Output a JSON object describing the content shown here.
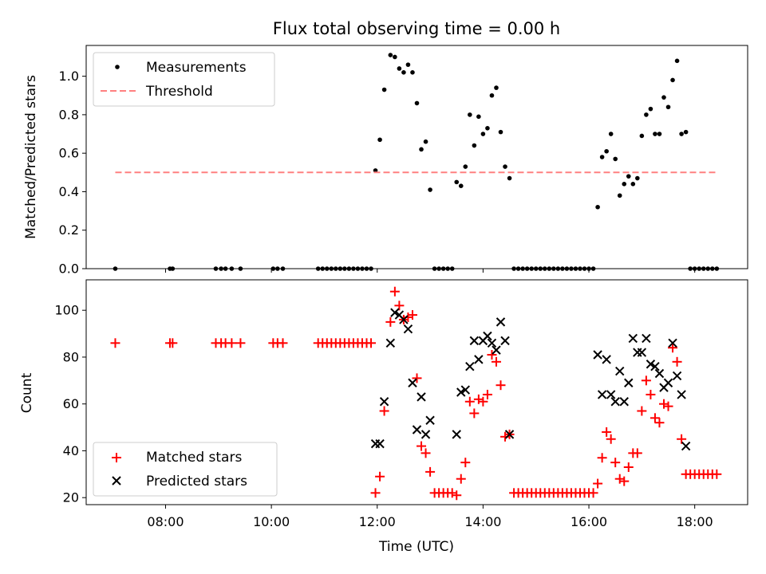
{
  "chart_data": [
    {
      "type": "scatter",
      "title": "Flux total observing time = 0.00 h",
      "xlabel": "",
      "ylabel": "Matched/Predicted stars",
      "xlim": [
        "06:30",
        "19:00"
      ],
      "ylim": [
        0,
        1.16
      ],
      "yticks": [
        0.0,
        0.2,
        0.4,
        0.6,
        0.8,
        1.0
      ],
      "ytick_labels": [
        "0.0",
        "0.2",
        "0.4",
        "0.6",
        "0.8",
        "1.0"
      ],
      "legend_position": "top-left",
      "series": [
        {
          "name": "Measurements",
          "marker": "dot",
          "color": "#000000",
          "points": [
            [
              "07:03",
              0
            ],
            [
              "08:05",
              0
            ],
            [
              "08:08",
              0
            ],
            [
              "08:57",
              0
            ],
            [
              "09:03",
              0
            ],
            [
              "09:08",
              0
            ],
            [
              "09:15",
              0
            ],
            [
              "09:25",
              0
            ],
            [
              "10:02",
              0
            ],
            [
              "10:07",
              0
            ],
            [
              "10:13",
              0
            ],
            [
              "10:53",
              0
            ],
            [
              "10:58",
              0
            ],
            [
              "11:03",
              0
            ],
            [
              "11:08",
              0
            ],
            [
              "11:13",
              0
            ],
            [
              "11:18",
              0
            ],
            [
              "11:23",
              0
            ],
            [
              "11:28",
              0
            ],
            [
              "11:33",
              0
            ],
            [
              "11:38",
              0
            ],
            [
              "11:43",
              0
            ],
            [
              "11:48",
              0
            ],
            [
              "11:53",
              0
            ],
            [
              "11:58",
              0.51
            ],
            [
              "12:03",
              0.67
            ],
            [
              "12:08",
              0.93
            ],
            [
              "12:15",
              1.11
            ],
            [
              "12:20",
              1.1
            ],
            [
              "12:25",
              1.04
            ],
            [
              "12:30",
              1.02
            ],
            [
              "12:35",
              1.06
            ],
            [
              "12:40",
              1.02
            ],
            [
              "12:45",
              0.86
            ],
            [
              "12:50",
              0.62
            ],
            [
              "12:55",
              0.66
            ],
            [
              "13:00",
              0.41
            ],
            [
              "13:05",
              0
            ],
            [
              "13:10",
              0
            ],
            [
              "13:15",
              0
            ],
            [
              "13:20",
              0
            ],
            [
              "13:25",
              0
            ],
            [
              "13:30",
              0.45
            ],
            [
              "13:35",
              0.43
            ],
            [
              "13:40",
              0.53
            ],
            [
              "13:45",
              0.8
            ],
            [
              "13:50",
              0.64
            ],
            [
              "13:55",
              0.79
            ],
            [
              "14:00",
              0.7
            ],
            [
              "14:05",
              0.73
            ],
            [
              "14:10",
              0.9
            ],
            [
              "14:15",
              0.94
            ],
            [
              "14:20",
              0.71
            ],
            [
              "14:25",
              0.53
            ],
            [
              "14:30",
              0.47
            ],
            [
              "14:35",
              0
            ],
            [
              "14:40",
              0
            ],
            [
              "14:45",
              0
            ],
            [
              "14:50",
              0
            ],
            [
              "14:55",
              0
            ],
            [
              "15:00",
              0
            ],
            [
              "15:05",
              0
            ],
            [
              "15:10",
              0
            ],
            [
              "15:15",
              0
            ],
            [
              "15:20",
              0
            ],
            [
              "15:25",
              0
            ],
            [
              "15:30",
              0
            ],
            [
              "15:35",
              0
            ],
            [
              "15:40",
              0
            ],
            [
              "15:45",
              0
            ],
            [
              "15:50",
              0
            ],
            [
              "15:55",
              0
            ],
            [
              "16:00",
              0
            ],
            [
              "16:05",
              0
            ],
            [
              "16:10",
              0.32
            ],
            [
              "16:15",
              0.58
            ],
            [
              "16:20",
              0.61
            ],
            [
              "16:25",
              0.7
            ],
            [
              "16:30",
              0.57
            ],
            [
              "16:35",
              0.38
            ],
            [
              "16:40",
              0.44
            ],
            [
              "16:45",
              0.48
            ],
            [
              "16:50",
              0.44
            ],
            [
              "16:55",
              0.47
            ],
            [
              "17:00",
              0.69
            ],
            [
              "17:05",
              0.8
            ],
            [
              "17:10",
              0.83
            ],
            [
              "17:15",
              0.7
            ],
            [
              "17:20",
              0.7
            ],
            [
              "17:25",
              0.89
            ],
            [
              "17:30",
              0.84
            ],
            [
              "17:35",
              0.98
            ],
            [
              "17:40",
              1.08
            ],
            [
              "17:45",
              0.7
            ],
            [
              "17:50",
              0.71
            ],
            [
              "17:55",
              0
            ],
            [
              "18:00",
              0
            ],
            [
              "18:05",
              0
            ],
            [
              "18:10",
              0
            ],
            [
              "18:15",
              0
            ],
            [
              "18:20",
              0
            ],
            [
              "18:25",
              0
            ]
          ]
        },
        {
          "name": "Threshold",
          "marker": "dashed-line",
          "color": "#ff8080",
          "points": [
            [
              "07:03",
              0.5
            ],
            [
              "18:25",
              0.5
            ]
          ]
        }
      ]
    },
    {
      "type": "scatter",
      "title": "",
      "xlabel": "Time (UTC)",
      "ylabel": "Count",
      "xlim": [
        "06:30",
        "19:00"
      ],
      "ylim": [
        17,
        113
      ],
      "xticks": [
        "08:00",
        "10:00",
        "12:00",
        "14:00",
        "16:00",
        "18:00"
      ],
      "yticks": [
        20,
        40,
        60,
        80,
        100
      ],
      "ytick_labels": [
        "20",
        "40",
        "60",
        "80",
        "100"
      ],
      "legend_position": "bottom-left",
      "series": [
        {
          "name": "Matched stars",
          "marker": "plus",
          "color": "#ff0000",
          "points": [
            [
              "07:03",
              86
            ],
            [
              "08:05",
              86
            ],
            [
              "08:08",
              86
            ],
            [
              "08:57",
              86
            ],
            [
              "09:03",
              86
            ],
            [
              "09:08",
              86
            ],
            [
              "09:15",
              86
            ],
            [
              "09:25",
              86
            ],
            [
              "10:02",
              86
            ],
            [
              "10:07",
              86
            ],
            [
              "10:13",
              86
            ],
            [
              "10:53",
              86
            ],
            [
              "10:58",
              86
            ],
            [
              "11:03",
              86
            ],
            [
              "11:08",
              86
            ],
            [
              "11:13",
              86
            ],
            [
              "11:18",
              86
            ],
            [
              "11:23",
              86
            ],
            [
              "11:28",
              86
            ],
            [
              "11:33",
              86
            ],
            [
              "11:38",
              86
            ],
            [
              "11:43",
              86
            ],
            [
              "11:48",
              86
            ],
            [
              "11:53",
              86
            ],
            [
              "11:58",
              22
            ],
            [
              "12:03",
              29
            ],
            [
              "12:08",
              57
            ],
            [
              "12:15",
              95
            ],
            [
              "12:20",
              108
            ],
            [
              "12:25",
              102
            ],
            [
              "12:30",
              96
            ],
            [
              "12:35",
              97
            ],
            [
              "12:40",
              98
            ],
            [
              "12:45",
              71
            ],
            [
              "12:50",
              42
            ],
            [
              "12:55",
              39
            ],
            [
              "13:00",
              31
            ],
            [
              "13:05",
              22
            ],
            [
              "13:10",
              22
            ],
            [
              "13:15",
              22
            ],
            [
              "13:20",
              22
            ],
            [
              "13:25",
              22
            ],
            [
              "13:30",
              21
            ],
            [
              "13:35",
              28
            ],
            [
              "13:40",
              35
            ],
            [
              "13:45",
              61
            ],
            [
              "13:50",
              56
            ],
            [
              "13:55",
              62
            ],
            [
              "14:00",
              61
            ],
            [
              "14:05",
              64
            ],
            [
              "14:10",
              81
            ],
            [
              "14:15",
              78
            ],
            [
              "14:20",
              68
            ],
            [
              "14:25",
              46
            ],
            [
              "14:30",
              47
            ],
            [
              "14:35",
              22
            ],
            [
              "14:40",
              22
            ],
            [
              "14:45",
              22
            ],
            [
              "14:50",
              22
            ],
            [
              "14:55",
              22
            ],
            [
              "15:00",
              22
            ],
            [
              "15:05",
              22
            ],
            [
              "15:10",
              22
            ],
            [
              "15:15",
              22
            ],
            [
              "15:20",
              22
            ],
            [
              "15:25",
              22
            ],
            [
              "15:30",
              22
            ],
            [
              "15:35",
              22
            ],
            [
              "15:40",
              22
            ],
            [
              "15:45",
              22
            ],
            [
              "15:50",
              22
            ],
            [
              "15:55",
              22
            ],
            [
              "16:00",
              22
            ],
            [
              "16:05",
              22
            ],
            [
              "16:10",
              26
            ],
            [
              "16:15",
              37
            ],
            [
              "16:20",
              48
            ],
            [
              "16:25",
              45
            ],
            [
              "16:30",
              35
            ],
            [
              "16:35",
              28
            ],
            [
              "16:40",
              27
            ],
            [
              "16:45",
              33
            ],
            [
              "16:50",
              39
            ],
            [
              "16:55",
              39
            ],
            [
              "17:00",
              57
            ],
            [
              "17:05",
              70
            ],
            [
              "17:10",
              64
            ],
            [
              "17:15",
              54
            ],
            [
              "17:20",
              52
            ],
            [
              "17:25",
              60
            ],
            [
              "17:30",
              59
            ],
            [
              "17:35",
              84
            ],
            [
              "17:40",
              78
            ],
            [
              "17:45",
              45
            ],
            [
              "17:50",
              30
            ],
            [
              "17:55",
              30
            ],
            [
              "18:00",
              30
            ],
            [
              "18:05",
              30
            ],
            [
              "18:10",
              30
            ],
            [
              "18:15",
              30
            ],
            [
              "18:20",
              30
            ],
            [
              "18:25",
              30
            ]
          ]
        },
        {
          "name": "Predicted stars",
          "marker": "x",
          "color": "#000000",
          "points": [
            [
              "11:58",
              43
            ],
            [
              "12:03",
              43
            ],
            [
              "12:08",
              61
            ],
            [
              "12:15",
              86
            ],
            [
              "12:20",
              99
            ],
            [
              "12:25",
              98
            ],
            [
              "12:30",
              96
            ],
            [
              "12:35",
              92
            ],
            [
              "12:40",
              69
            ],
            [
              "12:45",
              49
            ],
            [
              "12:50",
              63
            ],
            [
              "12:55",
              47
            ],
            [
              "13:00",
              53
            ],
            [
              "13:30",
              47
            ],
            [
              "13:35",
              65
            ],
            [
              "13:40",
              66
            ],
            [
              "13:45",
              76
            ],
            [
              "13:50",
              87
            ],
            [
              "13:55",
              79
            ],
            [
              "14:00",
              87
            ],
            [
              "14:05",
              89
            ],
            [
              "14:10",
              86
            ],
            [
              "14:15",
              83
            ],
            [
              "14:20",
              95
            ],
            [
              "14:25",
              87
            ],
            [
              "14:30",
              47
            ],
            [
              "16:10",
              81
            ],
            [
              "16:15",
              64
            ],
            [
              "16:20",
              79
            ],
            [
              "16:25",
              64
            ],
            [
              "16:30",
              61
            ],
            [
              "16:35",
              74
            ],
            [
              "16:40",
              61
            ],
            [
              "16:45",
              69
            ],
            [
              "16:50",
              88
            ],
            [
              "16:55",
              82
            ],
            [
              "17:00",
              82
            ],
            [
              "17:05",
              88
            ],
            [
              "17:10",
              77
            ],
            [
              "17:15",
              76
            ],
            [
              "17:20",
              73
            ],
            [
              "17:25",
              67
            ],
            [
              "17:30",
              69
            ],
            [
              "17:35",
              86
            ],
            [
              "17:40",
              72
            ],
            [
              "17:45",
              64
            ],
            [
              "17:50",
              42
            ]
          ]
        }
      ]
    }
  ]
}
